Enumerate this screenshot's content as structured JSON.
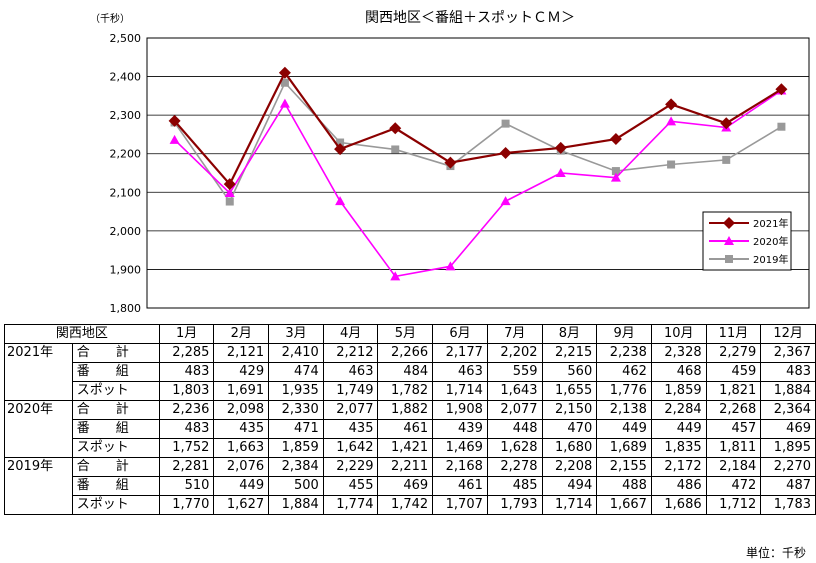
{
  "chart_data": {
    "type": "line",
    "title": "関西地区＜番組＋スポットＣＭ＞",
    "ylabel": "（千秒）",
    "categories": [
      "1月",
      "2月",
      "3月",
      "4月",
      "5月",
      "6月",
      "7月",
      "8月",
      "9月",
      "10月",
      "11月",
      "12月"
    ],
    "ylim": [
      1800,
      2500
    ],
    "yticks": [
      "1,800",
      "1,900",
      "2,000",
      "2,100",
      "2,200",
      "2,300",
      "2,400",
      "2,500"
    ],
    "grid": true,
    "legend_position": "lower-right",
    "series": [
      {
        "name": "2021年",
        "color": "#8b0000",
        "marker": "diamond",
        "values": [
          2285,
          2121,
          2410,
          2212,
          2266,
          2177,
          2202,
          2215,
          2238,
          2328,
          2279,
          2367
        ]
      },
      {
        "name": "2020年",
        "color": "#ff00ff",
        "marker": "triangle",
        "values": [
          2236,
          2098,
          2330,
          2077,
          1882,
          1908,
          2077,
          2150,
          2138,
          2284,
          2268,
          2364
        ]
      },
      {
        "name": "2019年",
        "color": "#999999",
        "marker": "square",
        "values": [
          2281,
          2076,
          2384,
          2229,
          2211,
          2168,
          2278,
          2208,
          2155,
          2172,
          2184,
          2270
        ]
      }
    ]
  },
  "table": {
    "header_label": "関西地区",
    "months": [
      "1月",
      "2月",
      "3月",
      "4月",
      "5月",
      "6月",
      "7月",
      "8月",
      "9月",
      "10月",
      "11月",
      "12月"
    ],
    "metric_labels": [
      "合　計",
      "番　組",
      "スポット"
    ],
    "groups": [
      {
        "year": "2021年",
        "rows": [
          [
            "2,285",
            "2,121",
            "2,410",
            "2,212",
            "2,266",
            "2,177",
            "2,202",
            "2,215",
            "2,238",
            "2,328",
            "2,279",
            "2,367"
          ],
          [
            "483",
            "429",
            "474",
            "463",
            "484",
            "463",
            "559",
            "560",
            "462",
            "468",
            "459",
            "483"
          ],
          [
            "1,803",
            "1,691",
            "1,935",
            "1,749",
            "1,782",
            "1,714",
            "1,643",
            "1,655",
            "1,776",
            "1,859",
            "1,821",
            "1,884"
          ]
        ]
      },
      {
        "year": "2020年",
        "rows": [
          [
            "2,236",
            "2,098",
            "2,330",
            "2,077",
            "1,882",
            "1,908",
            "2,077",
            "2,150",
            "2,138",
            "2,284",
            "2,268",
            "2,364"
          ],
          [
            "483",
            "435",
            "471",
            "435",
            "461",
            "439",
            "448",
            "470",
            "449",
            "449",
            "457",
            "469"
          ],
          [
            "1,752",
            "1,663",
            "1,859",
            "1,642",
            "1,421",
            "1,469",
            "1,628",
            "1,680",
            "1,689",
            "1,835",
            "1,811",
            "1,895"
          ]
        ]
      },
      {
        "year": "2019年",
        "rows": [
          [
            "2,281",
            "2,076",
            "2,384",
            "2,229",
            "2,211",
            "2,168",
            "2,278",
            "2,208",
            "2,155",
            "2,172",
            "2,184",
            "2,270"
          ],
          [
            "510",
            "449",
            "500",
            "455",
            "469",
            "461",
            "485",
            "494",
            "488",
            "486",
            "472",
            "487"
          ],
          [
            "1,770",
            "1,627",
            "1,884",
            "1,774",
            "1,742",
            "1,707",
            "1,793",
            "1,714",
            "1,667",
            "1,686",
            "1,712",
            "1,783"
          ]
        ]
      }
    ]
  },
  "unit_note": "単位：千秒"
}
